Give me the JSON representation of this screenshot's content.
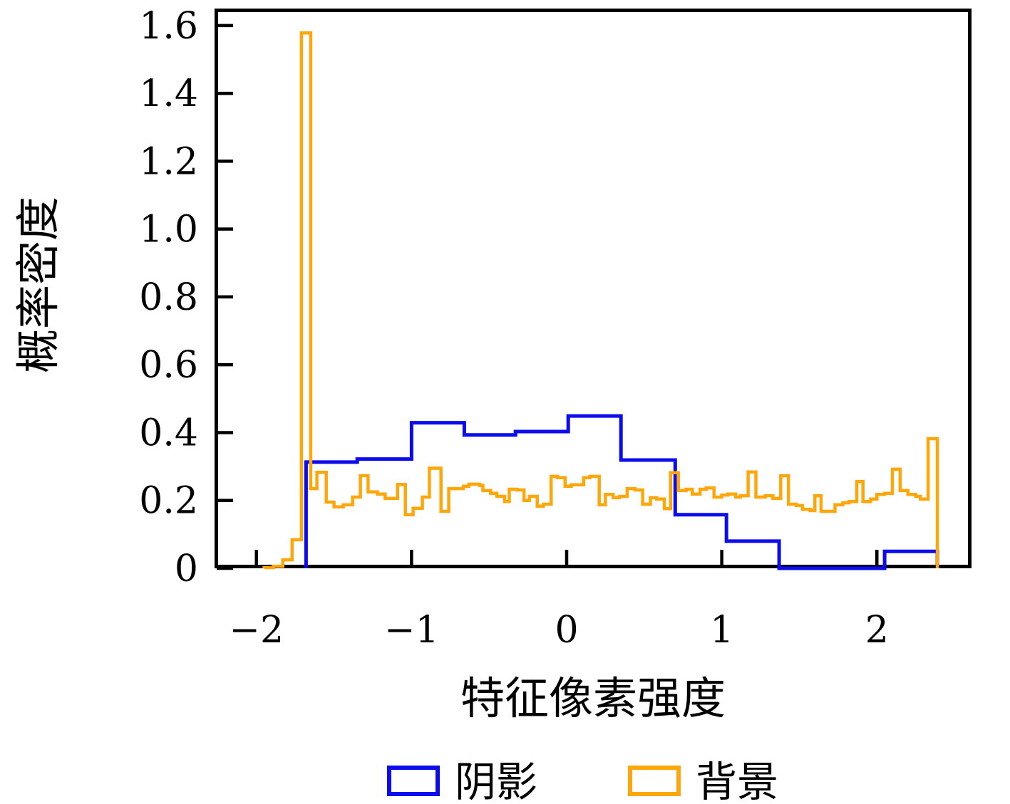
{
  "chart_data": {
    "type": "step-histogram",
    "title": "",
    "xlabel": "特征像素强度",
    "ylabel": "概率密度",
    "xlim": [
      -2.27,
      2.61
    ],
    "ylim": [
      0,
      1.65
    ],
    "grid": false,
    "x_ticks": [
      {
        "value": -2,
        "label": "−2"
      },
      {
        "value": -1,
        "label": "−1"
      },
      {
        "value": 0,
        "label": "0"
      },
      {
        "value": 1,
        "label": "1"
      },
      {
        "value": 2,
        "label": "2"
      }
    ],
    "y_ticks": [
      {
        "value": 0.0,
        "label": "0"
      },
      {
        "value": 0.2,
        "label": "0.2"
      },
      {
        "value": 0.4,
        "label": "0.4"
      },
      {
        "value": 0.6,
        "label": "0.6"
      },
      {
        "value": 0.8,
        "label": "0.8"
      },
      {
        "value": 1.0,
        "label": "1.0"
      },
      {
        "value": 1.2,
        "label": "1.2"
      },
      {
        "value": 1.4,
        "label": "1.4"
      },
      {
        "value": 1.6,
        "label": "1.6"
      }
    ],
    "legend": {
      "position": "below-chart",
      "entries": [
        {
          "label": "阴影",
          "color": "#0b0bee"
        },
        {
          "label": "背景",
          "color": "#ffa60a"
        }
      ]
    },
    "series": [
      {
        "name": "阴影",
        "color": "#0b0bee",
        "linewidth": 5,
        "edges": [
          -1.68,
          -1.35,
          -1.0,
          -0.66,
          -0.33,
          0.01,
          0.35,
          0.7,
          1.03,
          1.37,
          1.71,
          2.05,
          2.39
        ],
        "heights": [
          0.313,
          0.322,
          0.429,
          0.393,
          0.403,
          0.449,
          0.319,
          0.158,
          0.08,
          0.0,
          0.0,
          0.05
        ]
      },
      {
        "name": "背景",
        "color": "#ffa60a",
        "linewidth": 4.5,
        "edges": [
          -1.95,
          -1.89,
          -1.83,
          -1.77,
          -1.71,
          -1.65,
          -1.61,
          -1.55,
          -1.5,
          -1.44,
          -1.38,
          -1.33,
          -1.28,
          -1.22,
          -1.17,
          -1.09,
          -1.04,
          -0.99,
          -0.93,
          -0.885,
          -0.81,
          -0.76,
          -0.665,
          -0.63,
          -0.56,
          -0.54,
          -0.49,
          -0.45,
          -0.4,
          -0.37,
          -0.32,
          -0.275,
          -0.24,
          -0.19,
          -0.15,
          -0.1,
          -0.06,
          -0.01,
          0.03,
          0.11,
          0.15,
          0.21,
          0.25,
          0.3,
          0.34,
          0.39,
          0.44,
          0.49,
          0.54,
          0.58,
          0.63,
          0.67,
          0.72,
          0.77,
          0.81,
          0.86,
          0.9,
          0.95,
          1.0,
          1.04,
          1.09,
          1.12,
          1.17,
          1.22,
          1.28,
          1.33,
          1.38,
          1.43,
          1.48,
          1.52,
          1.57,
          1.6,
          1.64,
          1.69,
          1.73,
          1.78,
          1.82,
          1.87,
          1.91,
          1.96,
          2.0,
          2.05,
          2.1,
          2.15,
          2.2,
          2.25,
          2.28,
          2.33,
          2.39
        ],
        "heights": [
          0.002,
          0.006,
          0.025,
          0.084,
          1.578,
          0.235,
          0.283,
          0.195,
          0.181,
          0.187,
          0.21,
          0.273,
          0.225,
          0.219,
          0.206,
          0.247,
          0.158,
          0.177,
          0.21,
          0.295,
          0.168,
          0.235,
          0.242,
          0.248,
          0.244,
          0.229,
          0.221,
          0.212,
          0.197,
          0.233,
          0.231,
          0.2,
          0.212,
          0.183,
          0.189,
          0.271,
          0.267,
          0.242,
          0.246,
          0.267,
          0.271,
          0.187,
          0.218,
          0.208,
          0.212,
          0.235,
          0.231,
          0.189,
          0.208,
          0.204,
          0.176,
          0.282,
          0.229,
          0.233,
          0.219,
          0.233,
          0.237,
          0.21,
          0.216,
          0.219,
          0.21,
          0.214,
          0.284,
          0.21,
          0.214,
          0.206,
          0.273,
          0.189,
          0.185,
          0.174,
          0.17,
          0.214,
          0.168,
          0.168,
          0.187,
          0.193,
          0.197,
          0.256,
          0.197,
          0.204,
          0.218,
          0.221,
          0.292,
          0.229,
          0.218,
          0.212,
          0.204,
          0.382
        ]
      }
    ]
  }
}
